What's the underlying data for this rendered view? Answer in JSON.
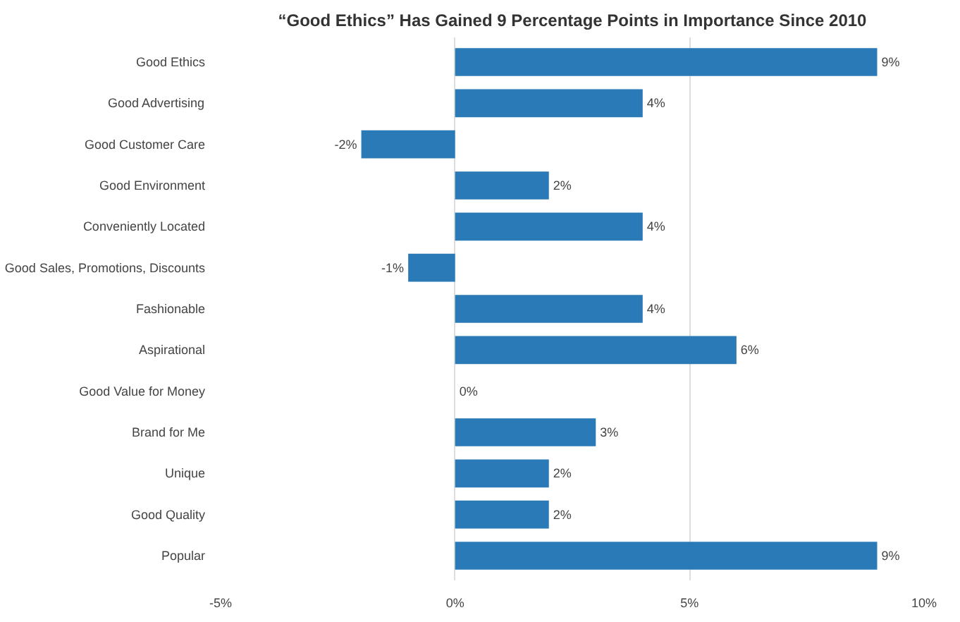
{
  "chart_data": {
    "type": "bar",
    "orientation": "horizontal",
    "title": "“Good Ethics” Has Gained 9 Percentage Points in Importance Since 2010",
    "categories": [
      "Good Ethics",
      "Good Advertising",
      "Good Customer Care",
      "Good Environment",
      "Conveniently Located",
      "Good Sales, Promotions, Discounts",
      "Fashionable",
      "Aspirational",
      "Good Value for Money",
      "Brand for Me",
      "Unique",
      "Good Quality",
      "Popular"
    ],
    "values": [
      9,
      4,
      -2,
      2,
      4,
      -1,
      4,
      6,
      0,
      3,
      2,
      2,
      9
    ],
    "value_labels": [
      "9%",
      "4%",
      "-2%",
      "2%",
      "4%",
      "-1%",
      "4%",
      "6%",
      "0%",
      "3%",
      "2%",
      "2%",
      "9%"
    ],
    "color": "#2a7ab8",
    "xlim": [
      -5,
      10
    ],
    "xticks": [
      {
        "value": -5,
        "label": "-5%"
      },
      {
        "value": 0,
        "label": "0%"
      },
      {
        "value": 5,
        "label": "5%"
      },
      {
        "value": 10,
        "label": "10%"
      }
    ],
    "grid": "x"
  }
}
